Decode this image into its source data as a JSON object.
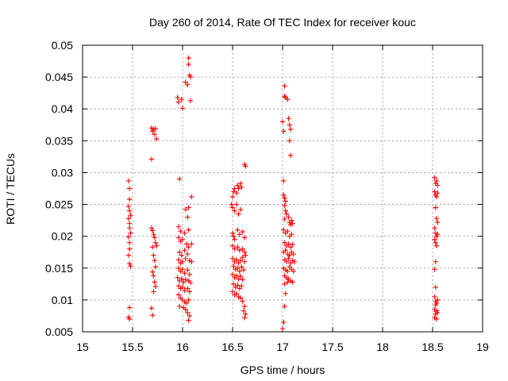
{
  "chart_data": {
    "type": "scatter",
    "title": "Day 260 of 2014, Rate Of TEC Index for receiver kouc",
    "xlabel": "GPS time / hours",
    "ylabel": "ROTI / TECUs",
    "xlim": [
      15,
      19
    ],
    "ylim": [
      0.005,
      0.05
    ],
    "xticks": [
      "15",
      "15.5",
      "16",
      "16.5",
      "17",
      "17.5",
      "18",
      "18.5",
      "19"
    ],
    "yticks": [
      "0.005",
      "0.01",
      "0.015",
      "0.02",
      "0.025",
      "0.03",
      "0.035",
      "0.04",
      "0.045",
      "0.05"
    ],
    "grid": true,
    "marker": "plus",
    "color": "#ff0000",
    "series": [
      {
        "name": "ROTI",
        "points": [
          [
            15.46,
            0.0287
          ],
          [
            15.47,
            0.0275
          ],
          [
            15.47,
            0.0258
          ],
          [
            15.46,
            0.0247
          ],
          [
            15.47,
            0.024
          ],
          [
            15.48,
            0.0233
          ],
          [
            15.46,
            0.0228
          ],
          [
            15.47,
            0.022
          ],
          [
            15.47,
            0.0213
          ],
          [
            15.48,
            0.0205
          ],
          [
            15.46,
            0.0199
          ],
          [
            15.47,
            0.019
          ],
          [
            15.47,
            0.018
          ],
          [
            15.46,
            0.017
          ],
          [
            15.47,
            0.0157
          ],
          [
            15.48,
            0.0153
          ],
          [
            15.47,
            0.0088
          ],
          [
            15.46,
            0.0073
          ],
          [
            15.47,
            0.007
          ],
          [
            15.69,
            0.0321
          ],
          [
            15.69,
            0.037
          ],
          [
            15.7,
            0.0365
          ],
          [
            15.71,
            0.0368
          ],
          [
            15.72,
            0.036
          ],
          [
            15.73,
            0.0369
          ],
          [
            15.74,
            0.0353
          ],
          [
            15.69,
            0.0213
          ],
          [
            15.7,
            0.0209
          ],
          [
            15.71,
            0.0203
          ],
          [
            15.72,
            0.0198
          ],
          [
            15.73,
            0.019
          ],
          [
            15.7,
            0.0183
          ],
          [
            15.74,
            0.0185
          ],
          [
            15.71,
            0.017
          ],
          [
            15.72,
            0.0162
          ],
          [
            15.73,
            0.0152
          ],
          [
            15.7,
            0.0144
          ],
          [
            15.71,
            0.0138
          ],
          [
            15.72,
            0.0128
          ],
          [
            15.73,
            0.0121
          ],
          [
            15.71,
            0.0113
          ],
          [
            15.69,
            0.0087
          ],
          [
            15.7,
            0.0076
          ],
          [
            15.95,
            0.0418
          ],
          [
            15.96,
            0.0411
          ],
          [
            15.99,
            0.0415
          ],
          [
            16.0,
            0.0401
          ],
          [
            16.03,
            0.0442
          ],
          [
            16.05,
            0.0438
          ],
          [
            16.06,
            0.047
          ],
          [
            16.06,
            0.048
          ],
          [
            16.07,
            0.0453
          ],
          [
            16.08,
            0.045
          ],
          [
            16.08,
            0.0413
          ],
          [
            15.97,
            0.029
          ],
          [
            16.09,
            0.0262
          ],
          [
            16.03,
            0.0242
          ],
          [
            16.06,
            0.0245
          ],
          [
            16.05,
            0.023
          ],
          [
            15.96,
            0.0215
          ],
          [
            15.98,
            0.0208
          ],
          [
            16.02,
            0.0205
          ],
          [
            16.06,
            0.021
          ],
          [
            15.96,
            0.0198
          ],
          [
            15.98,
            0.0192
          ],
          [
            16.0,
            0.0195
          ],
          [
            16.04,
            0.0188
          ],
          [
            16.06,
            0.0183
          ],
          [
            16.09,
            0.0188
          ],
          [
            15.97,
            0.0175
          ],
          [
            15.99,
            0.017
          ],
          [
            16.02,
            0.0178
          ],
          [
            16.05,
            0.0172
          ],
          [
            15.96,
            0.0163
          ],
          [
            15.98,
            0.0158
          ],
          [
            16.0,
            0.016
          ],
          [
            16.03,
            0.0165
          ],
          [
            16.07,
            0.0162
          ],
          [
            16.09,
            0.016
          ],
          [
            15.96,
            0.015
          ],
          [
            15.98,
            0.0145
          ],
          [
            16.0,
            0.0148
          ],
          [
            16.02,
            0.0142
          ],
          [
            16.05,
            0.0147
          ],
          [
            16.07,
            0.014
          ],
          [
            15.95,
            0.0135
          ],
          [
            15.97,
            0.013
          ],
          [
            15.99,
            0.0133
          ],
          [
            16.01,
            0.0128
          ],
          [
            16.03,
            0.0132
          ],
          [
            16.06,
            0.013
          ],
          [
            16.08,
            0.0127
          ],
          [
            15.96,
            0.0122
          ],
          [
            15.98,
            0.0118
          ],
          [
            16.0,
            0.012
          ],
          [
            16.02,
            0.0115
          ],
          [
            16.05,
            0.0118
          ],
          [
            16.07,
            0.0113
          ],
          [
            15.96,
            0.0108
          ],
          [
            15.98,
            0.0103
          ],
          [
            16.0,
            0.01
          ],
          [
            16.02,
            0.0097
          ],
          [
            16.04,
            0.0095
          ],
          [
            16.06,
            0.01
          ],
          [
            15.97,
            0.009
          ],
          [
            16.01,
            0.0088
          ],
          [
            16.03,
            0.0085
          ],
          [
            16.05,
            0.008
          ],
          [
            16.07,
            0.0075
          ],
          [
            16.06,
            0.0068
          ],
          [
            16.49,
            0.025
          ],
          [
            16.5,
            0.0262
          ],
          [
            16.51,
            0.027
          ],
          [
            16.52,
            0.0275
          ],
          [
            16.54,
            0.0268
          ],
          [
            16.55,
            0.028
          ],
          [
            16.56,
            0.0275
          ],
          [
            16.58,
            0.0283
          ],
          [
            16.59,
            0.0277
          ],
          [
            16.62,
            0.0313
          ],
          [
            16.63,
            0.031
          ],
          [
            16.5,
            0.0245
          ],
          [
            16.52,
            0.024
          ],
          [
            16.54,
            0.025
          ],
          [
            16.56,
            0.0235
          ],
          [
            16.58,
            0.0242
          ],
          [
            16.5,
            0.0205
          ],
          [
            16.51,
            0.02
          ],
          [
            16.52,
            0.0195
          ],
          [
            16.55,
            0.021
          ],
          [
            16.57,
            0.0203
          ],
          [
            16.6,
            0.0207
          ],
          [
            16.62,
            0.0198
          ],
          [
            16.5,
            0.0185
          ],
          [
            16.52,
            0.018
          ],
          [
            16.55,
            0.0183
          ],
          [
            16.57,
            0.0178
          ],
          [
            16.6,
            0.018
          ],
          [
            16.62,
            0.0175
          ],
          [
            16.5,
            0.0165
          ],
          [
            16.52,
            0.016
          ],
          [
            16.54,
            0.0163
          ],
          [
            16.56,
            0.0158
          ],
          [
            16.58,
            0.0162
          ],
          [
            16.6,
            0.0167
          ],
          [
            16.62,
            0.016
          ],
          [
            16.63,
            0.017
          ],
          [
            16.51,
            0.0153
          ],
          [
            16.53,
            0.0148
          ],
          [
            16.55,
            0.015
          ],
          [
            16.57,
            0.0145
          ],
          [
            16.59,
            0.0152
          ],
          [
            16.61,
            0.0147
          ],
          [
            16.5,
            0.014
          ],
          [
            16.52,
            0.0135
          ],
          [
            16.54,
            0.0138
          ],
          [
            16.56,
            0.0133
          ],
          [
            16.58,
            0.0137
          ],
          [
            16.6,
            0.0132
          ],
          [
            16.51,
            0.0125
          ],
          [
            16.53,
            0.012
          ],
          [
            16.55,
            0.0123
          ],
          [
            16.57,
            0.0118
          ],
          [
            16.59,
            0.0122
          ],
          [
            16.5,
            0.0113
          ],
          [
            16.52,
            0.0108
          ],
          [
            16.54,
            0.011
          ],
          [
            16.56,
            0.0105
          ],
          [
            16.58,
            0.0103
          ],
          [
            16.6,
            0.0098
          ],
          [
            16.62,
            0.009
          ],
          [
            16.61,
            0.0083
          ],
          [
            16.63,
            0.0078
          ],
          [
            16.62,
            0.0072
          ],
          [
            17.0,
            0.038
          ],
          [
            17.01,
            0.0365
          ],
          [
            17.02,
            0.0436
          ],
          [
            17.02,
            0.042
          ],
          [
            17.03,
            0.0418
          ],
          [
            17.05,
            0.0415
          ],
          [
            17.06,
            0.0385
          ],
          [
            17.07,
            0.0375
          ],
          [
            17.08,
            0.0368
          ],
          [
            17.07,
            0.035
          ],
          [
            17.08,
            0.0327
          ],
          [
            17.01,
            0.0287
          ],
          [
            17.01,
            0.0265
          ],
          [
            17.02,
            0.026
          ],
          [
            17.03,
            0.0255
          ],
          [
            17.02,
            0.0248
          ],
          [
            17.03,
            0.024
          ],
          [
            17.04,
            0.0235
          ],
          [
            17.02,
            0.0227
          ],
          [
            17.06,
            0.023
          ],
          [
            17.07,
            0.0222
          ],
          [
            17.08,
            0.0218
          ],
          [
            17.09,
            0.0225
          ],
          [
            17.1,
            0.022
          ],
          [
            17.01,
            0.021
          ],
          [
            17.03,
            0.0205
          ],
          [
            17.05,
            0.0208
          ],
          [
            17.07,
            0.02
          ],
          [
            17.09,
            0.0203
          ],
          [
            17.02,
            0.019
          ],
          [
            17.04,
            0.0185
          ],
          [
            17.06,
            0.0188
          ],
          [
            17.08,
            0.0183
          ],
          [
            17.1,
            0.0187
          ],
          [
            17.01,
            0.0175
          ],
          [
            17.03,
            0.0178
          ],
          [
            17.05,
            0.0172
          ],
          [
            17.07,
            0.017
          ],
          [
            17.09,
            0.0175
          ],
          [
            17.11,
            0.0172
          ],
          [
            17.02,
            0.0163
          ],
          [
            17.04,
            0.016
          ],
          [
            17.06,
            0.0165
          ],
          [
            17.08,
            0.0158
          ],
          [
            17.1,
            0.0162
          ],
          [
            17.12,
            0.016
          ],
          [
            17.01,
            0.015
          ],
          [
            17.03,
            0.0147
          ],
          [
            17.05,
            0.0145
          ],
          [
            17.07,
            0.0152
          ],
          [
            17.09,
            0.0148
          ],
          [
            17.11,
            0.0145
          ],
          [
            17.02,
            0.0138
          ],
          [
            17.04,
            0.0135
          ],
          [
            17.06,
            0.0133
          ],
          [
            17.08,
            0.013
          ],
          [
            17.1,
            0.0128
          ],
          [
            17.02,
            0.0125
          ],
          [
            17.05,
            0.0128
          ],
          [
            17.03,
            0.011
          ],
          [
            17.02,
            0.009
          ],
          [
            17.01,
            0.0065
          ],
          [
            17.0,
            0.0055
          ],
          [
            18.52,
            0.0292
          ],
          [
            18.53,
            0.0283
          ],
          [
            18.54,
            0.0287
          ],
          [
            18.55,
            0.028
          ],
          [
            18.52,
            0.027
          ],
          [
            18.53,
            0.0265
          ],
          [
            18.54,
            0.0262
          ],
          [
            18.55,
            0.0268
          ],
          [
            18.53,
            0.0245
          ],
          [
            18.54,
            0.0228
          ],
          [
            18.55,
            0.0222
          ],
          [
            18.52,
            0.0213
          ],
          [
            18.53,
            0.0205
          ],
          [
            18.54,
            0.02
          ],
          [
            18.55,
            0.0203
          ],
          [
            18.52,
            0.0195
          ],
          [
            18.53,
            0.019
          ],
          [
            18.54,
            0.0185
          ],
          [
            18.53,
            0.016
          ],
          [
            18.52,
            0.0148
          ],
          [
            18.53,
            0.012
          ],
          [
            18.52,
            0.0105
          ],
          [
            18.53,
            0.0098
          ],
          [
            18.54,
            0.0095
          ],
          [
            18.55,
            0.01
          ],
          [
            18.53,
            0.0092
          ],
          [
            18.52,
            0.0085
          ],
          [
            18.54,
            0.0083
          ],
          [
            18.55,
            0.008
          ],
          [
            18.53,
            0.0078
          ],
          [
            18.52,
            0.0072
          ],
          [
            18.54,
            0.007
          ]
        ]
      }
    ]
  }
}
